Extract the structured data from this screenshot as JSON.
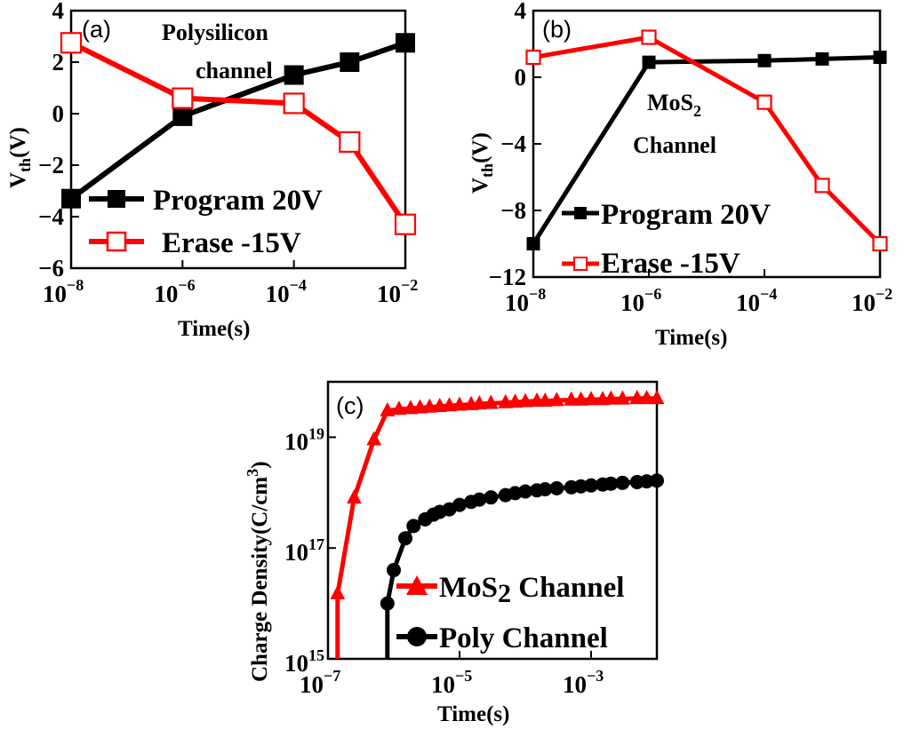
{
  "chart_data": [
    {
      "panel": "(a)",
      "type": "line",
      "xscale": "log",
      "xlim": [
        1e-08,
        0.01
      ],
      "ylim": [
        -6,
        4
      ],
      "xticks": [
        {
          "exp": "−8"
        },
        {
          "exp": "−6"
        },
        {
          "exp": "−4"
        },
        {
          "exp": "−2"
        }
      ],
      "yticks": [
        "4",
        "2",
        "0",
        "−2",
        "−4",
        "−6"
      ],
      "xlabel": "Time(s)",
      "ylabel": {
        "base": "V",
        "sub": "th",
        "rest": "(V)"
      },
      "annotation": [
        "Polysilicon",
        "channel"
      ],
      "legend_position": "lower-left",
      "series": [
        {
          "name": "Program 20V",
          "marker": "filled-square",
          "color": "#000000",
          "x": [
            1e-08,
            1e-06,
            0.0001,
            0.001,
            0.01
          ],
          "y": [
            -3.3,
            -0.1,
            1.5,
            2.0,
            2.75
          ]
        },
        {
          "name": "Erase -15V",
          "marker": "open-square",
          "color": "#ff0000",
          "x": [
            1e-08,
            1e-06,
            0.0001,
            0.001,
            0.01
          ],
          "y": [
            2.75,
            0.6,
            0.4,
            -1.1,
            -4.3
          ]
        }
      ]
    },
    {
      "panel": "(b)",
      "type": "line",
      "xscale": "log",
      "xlim": [
        1e-08,
        0.01
      ],
      "ylim": [
        -12,
        4
      ],
      "xticks": [
        {
          "exp": "−8"
        },
        {
          "exp": "−6"
        },
        {
          "exp": "−4"
        },
        {
          "exp": "−2"
        }
      ],
      "yticks": [
        "4",
        "0",
        "−4",
        "−8",
        "−12"
      ],
      "xlabel": "Time(s)",
      "ylabel": {
        "base": "V",
        "sub": "th",
        "rest": "(V)"
      },
      "annotation": [
        "MoS",
        "2",
        "Channel"
      ],
      "legend_position": "lower-left",
      "series": [
        {
          "name": "Program 20V",
          "marker": "filled-square",
          "color": "#000000",
          "x": [
            1e-08,
            1e-06,
            0.0001,
            0.001,
            0.01
          ],
          "y": [
            -10,
            0.9,
            1.0,
            1.1,
            1.2
          ]
        },
        {
          "name": "Erase -15V",
          "marker": "open-square",
          "color": "#ff0000",
          "x": [
            1e-08,
            1e-06,
            0.0001,
            0.001,
            0.01
          ],
          "y": [
            1.2,
            2.4,
            -1.5,
            -6.5,
            -10
          ]
        }
      ]
    },
    {
      "panel": "(c)",
      "type": "line",
      "xscale": "log",
      "yscale": "log",
      "xlim": [
        1e-07,
        0.01
      ],
      "ylim": [
        1000000000000000.0,
        1e+20
      ],
      "xticks": [
        {
          "exp": "−7"
        },
        {
          "exp": "−5"
        },
        {
          "exp": "−3"
        }
      ],
      "yticks": [
        {
          "exp": "19"
        },
        {
          "exp": "17"
        },
        {
          "exp": "15"
        }
      ],
      "xlabel": "Time(s)",
      "ylabel": "Charge Density(C/cm3)",
      "legend_position": "lower-right",
      "series": [
        {
          "name": "MoS2 Channel",
          "marker": "triangle",
          "color": "#ff0000",
          "x": [
            1.4e-07,
            2.5e-07,
            5e-07,
            8e-07,
            1.2e-06,
            1.8e-06,
            2.5e-06,
            3.5e-06,
            5e-06,
            7e-06,
            1e-05,
            1.5e-05,
            2e-05,
            3e-05,
            5e-05,
            7e-05,
            0.0001,
            0.00015,
            0.0002,
            0.0003,
            0.0005,
            0.0007,
            0.001,
            0.0015,
            0.002,
            0.003,
            0.005,
            0.007,
            0.01
          ],
          "y": [
            1.5e+16,
            8e+17,
            9e+18,
            3e+19,
            3.2e+19,
            3.3e+19,
            3.4e+19,
            3.5e+19,
            3.6e+19,
            3.7e+19,
            3.8e+19,
            3.9e+19,
            4e+19,
            4.1e+19,
            4.2e+19,
            4.3e+19,
            4.4e+19,
            4.5e+19,
            4.5e+19,
            4.6e+19,
            4.7e+19,
            4.7e+19,
            4.8e+19,
            4.8e+19,
            4.9e+19,
            4.9e+19,
            5e+19,
            5e+19,
            5e+19
          ]
        },
        {
          "name": "Poly Channel",
          "marker": "circle",
          "color": "#000000",
          "x": [
            8e-07,
            1e-06,
            1.5e-06,
            2e-06,
            3e-06,
            4e-06,
            5e-06,
            7e-06,
            1e-05,
            1.5e-05,
            2e-05,
            3e-05,
            5e-05,
            7e-05,
            0.0001,
            0.00015,
            0.0002,
            0.0003,
            0.0005,
            0.0007,
            0.001,
            0.0015,
            0.002,
            0.003,
            0.005,
            0.007,
            0.01
          ],
          "y": [
            1e+16,
            4e+16,
            1.5e+17,
            2.5e+17,
            3.3e+17,
            4e+17,
            4.5e+17,
            5e+17,
            6e+17,
            6.8e+17,
            7.5e+17,
            8.2e+17,
            9e+17,
            9.8e+17,
            1.05e+18,
            1.1e+18,
            1.15e+18,
            1.2e+18,
            1.25e+18,
            1.3e+18,
            1.35e+18,
            1.4e+18,
            1.45e+18,
            1.5e+18,
            1.55e+18,
            1.6e+18,
            1.65e+18
          ]
        }
      ]
    }
  ],
  "labels": {
    "ten": "10",
    "c_ylabel_main": "Charge Density(C/cm",
    "c_ylabel_sup": "3",
    "c_ylabel_end": ")",
    "c_legend_mos": "MoS",
    "c_legend_mos_sub": "2",
    "c_legend_mos_rest": " Channel"
  }
}
